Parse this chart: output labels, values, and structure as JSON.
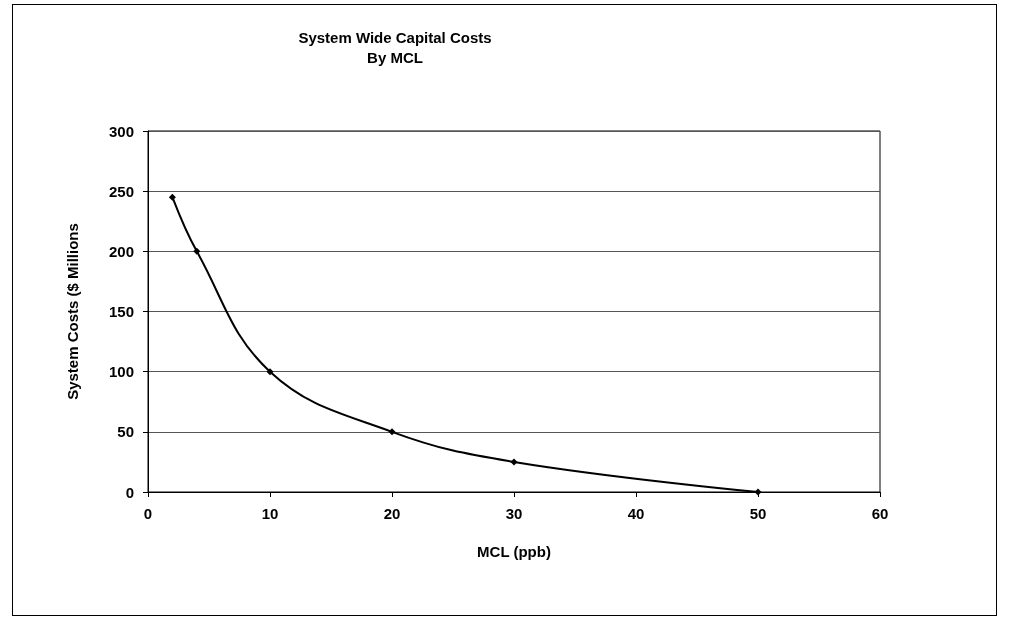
{
  "chart_data": {
    "type": "line",
    "title": "System Wide Capital Costs\nBy MCL",
    "xlabel": "MCL (ppb)",
    "ylabel": "System Costs ($ Millions",
    "x": [
      2,
      4,
      10,
      20,
      30,
      50
    ],
    "series": [
      {
        "color": "#000000",
        "values": [
          245,
          200,
          100,
          50,
          25,
          0
        ]
      }
    ],
    "xlim": [
      0,
      60
    ],
    "xticks": [
      0,
      10,
      20,
      30,
      40,
      50,
      60
    ],
    "ylim": [
      0,
      300
    ],
    "yticks": [
      0,
      50,
      100,
      150,
      200,
      250,
      300
    ],
    "grid": "y",
    "marker": "diamond",
    "line_style": "solid"
  }
}
